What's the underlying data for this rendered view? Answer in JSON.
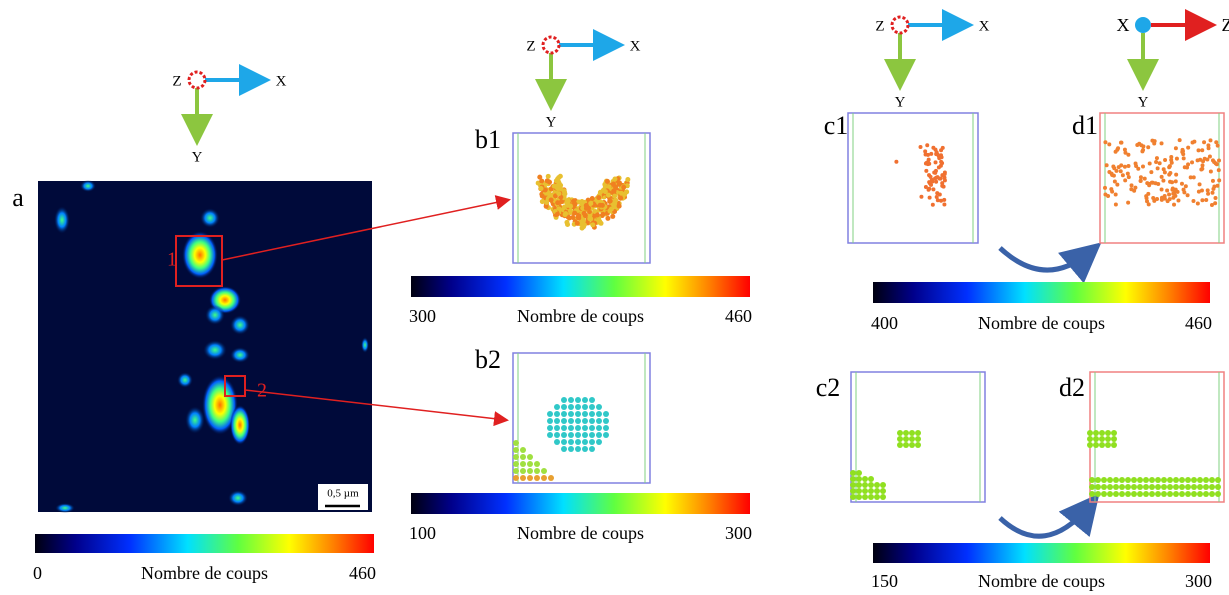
{
  "triads": [
    {
      "origin": "Z",
      "h": "X",
      "v": "Y"
    },
    {
      "origin": "Z",
      "h": "X",
      "v": "Y"
    },
    {
      "origin": "Z",
      "h": "X",
      "v": "Y"
    },
    {
      "origin": "X",
      "h": "Z",
      "v": "Y"
    }
  ],
  "panel_labels": [
    "a",
    "b1",
    "b2",
    "c1",
    "d1",
    "c2",
    "d2"
  ],
  "regions": [
    "1",
    "2"
  ],
  "scale_bar": "0,5 µm",
  "colorbars": [
    {
      "min": 0,
      "max": 460,
      "label": "Nombre de coups"
    },
    {
      "min": 300,
      "max": 460,
      "label": "Nombre de coups"
    },
    {
      "min": 100,
      "max": 300,
      "label": "Nombre de coups"
    },
    {
      "min": 400,
      "max": 460,
      "label": "Nombre de coups"
    },
    {
      "min": 150,
      "max": 300,
      "label": "Nombre de coups"
    }
  ]
}
